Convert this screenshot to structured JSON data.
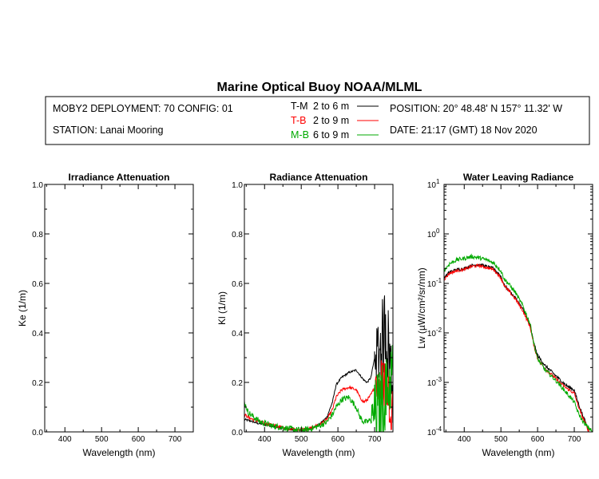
{
  "title": "Marine Optical Buoy NOAA/MLML",
  "info": {
    "deployment": "MOBY2 DEPLOYMENT: 70 CONFIG: 01",
    "station": "STATION: Lanai Mooring",
    "position": "POSITION: 20° 48.48' N   157° 11.32' W",
    "date": "DATE: 21:17 (GMT) 18 Nov 2020",
    "legend": [
      {
        "key": "T-M",
        "range": "2 to 6  m",
        "color": "#000000"
      },
      {
        "key": "T-B",
        "range": "2 to 9  m",
        "color": "#ff0000"
      },
      {
        "key": "M-B",
        "range": "6 to 9  m",
        "color": "#00aa00"
      }
    ]
  },
  "chart_data": [
    {
      "type": "line",
      "title": "Irradiance Attenuation",
      "xlabel": "Wavelength (nm)",
      "ylabel": "Ke  (1/m)",
      "xlim": [
        345,
        750
      ],
      "ylim": [
        0,
        1
      ],
      "xticks": [
        "400",
        "500",
        "600",
        "700"
      ],
      "yticks": [
        "0.0",
        "0.2",
        "0.4",
        "0.6",
        "0.8",
        "1.0"
      ],
      "series": []
    },
    {
      "type": "line",
      "title": "Radiance Attenuation",
      "xlabel": "Wavelength (nm)",
      "ylabel": "Kl  (1/m)",
      "xlim": [
        345,
        750
      ],
      "ylim": [
        0,
        1
      ],
      "xticks": [
        "400",
        "500",
        "600",
        "700"
      ],
      "yticks": [
        "0.0",
        "0.2",
        "0.4",
        "0.6",
        "0.8",
        "1.0"
      ],
      "series": [
        {
          "color": "#000000",
          "noise": 0.004,
          "spike_from": 700,
          "spike_amp": 0.18,
          "x": [
            345,
            360,
            380,
            400,
            430,
            460,
            490,
            520,
            550,
            570,
            585,
            595,
            610,
            630,
            650,
            660,
            670,
            680,
            690,
            700,
            710,
            720,
            730,
            740,
            750
          ],
          "y": [
            0.05,
            0.045,
            0.035,
            0.03,
            0.02,
            0.012,
            0.006,
            0.01,
            0.03,
            0.06,
            0.12,
            0.19,
            0.22,
            0.24,
            0.25,
            0.23,
            0.21,
            0.2,
            0.22,
            0.3,
            0.33,
            0.35,
            0.45,
            0.3,
            0.2
          ]
        },
        {
          "color": "#ff0000",
          "noise": 0.006,
          "spike_from": 700,
          "spike_amp": 0.12,
          "x": [
            345,
            360,
            380,
            400,
            430,
            460,
            490,
            520,
            550,
            570,
            585,
            595,
            610,
            630,
            650,
            660,
            670,
            680,
            690,
            700,
            710,
            720,
            730,
            740,
            750
          ],
          "y": [
            0.07,
            0.055,
            0.045,
            0.035,
            0.025,
            0.015,
            0.008,
            0.012,
            0.03,
            0.05,
            0.09,
            0.14,
            0.17,
            0.18,
            0.17,
            0.14,
            0.12,
            0.13,
            0.15,
            0.18,
            0.2,
            0.18,
            0.22,
            0.15,
            0.1
          ]
        },
        {
          "color": "#00aa00",
          "noise": 0.012,
          "spike_from": 690,
          "spike_amp": 0.15,
          "x": [
            345,
            355,
            370,
            390,
            420,
            460,
            490,
            520,
            550,
            570,
            585,
            595,
            610,
            630,
            650,
            660,
            670,
            680,
            690,
            700,
            710,
            720,
            730,
            740,
            750
          ],
          "y": [
            0.12,
            0.08,
            0.06,
            0.04,
            0.025,
            0.015,
            0.008,
            0.01,
            0.025,
            0.04,
            0.07,
            0.1,
            0.13,
            0.14,
            0.1,
            0.06,
            0.04,
            0.04,
            0.05,
            0.08,
            0.1,
            0.12,
            0.15,
            0.2,
            0.25
          ]
        }
      ]
    },
    {
      "type": "line",
      "title": "Water Leaving Radiance",
      "xlabel": "Wavelength (nm)",
      "ylabel": "Lw  (µW/cm²/sr/nm)",
      "xlim": [
        345,
        750
      ],
      "ylim": [
        0.0001,
        10
      ],
      "yscale": "log",
      "xticks": [
        "400",
        "500",
        "600",
        "700"
      ],
      "yticks": [
        {
          "base": "10",
          "exp": "1"
        },
        {
          "base": "10",
          "exp": "0"
        },
        {
          "base": "10",
          "exp": "-1"
        },
        {
          "base": "10",
          "exp": "-2"
        },
        {
          "base": "10",
          "exp": "-3"
        },
        {
          "base": "10",
          "exp": "-4"
        }
      ],
      "series": [
        {
          "color": "#000000",
          "noise": 0.06,
          "x": [
            345,
            360,
            380,
            400,
            420,
            440,
            460,
            480,
            500,
            510,
            520,
            540,
            560,
            580,
            590,
            600,
            620,
            640,
            660,
            680,
            700,
            710,
            720,
            730,
            740
          ],
          "y": [
            0.13,
            0.17,
            0.19,
            0.2,
            0.23,
            0.24,
            0.22,
            0.2,
            0.14,
            0.09,
            0.075,
            0.05,
            0.03,
            0.014,
            0.006,
            0.0035,
            0.0022,
            0.0016,
            0.00115,
            0.00085,
            0.0007,
            0.0004,
            0.00025,
            0.00016,
            0.0001
          ]
        },
        {
          "color": "#ff0000",
          "noise": 0.06,
          "x": [
            345,
            360,
            380,
            400,
            420,
            440,
            460,
            480,
            500,
            510,
            520,
            540,
            560,
            580,
            590,
            600,
            620,
            640,
            660,
            680,
            700,
            710,
            720,
            730,
            740
          ],
          "y": [
            0.12,
            0.16,
            0.18,
            0.19,
            0.22,
            0.23,
            0.21,
            0.19,
            0.13,
            0.088,
            0.072,
            0.048,
            0.028,
            0.013,
            0.0055,
            0.003,
            0.0019,
            0.0014,
            0.001,
            0.00075,
            0.0006,
            0.00035,
            0.00022,
            0.00015,
            0.0001
          ]
        },
        {
          "color": "#00aa00",
          "noise": 0.08,
          "x": [
            345,
            360,
            380,
            400,
            420,
            440,
            460,
            480,
            500,
            510,
            520,
            540,
            560,
            580,
            590,
            600,
            620,
            640,
            660,
            680,
            700,
            710,
            720,
            730,
            740,
            750
          ],
          "y": [
            0.18,
            0.25,
            0.3,
            0.32,
            0.35,
            0.33,
            0.3,
            0.26,
            0.18,
            0.12,
            0.1,
            0.065,
            0.035,
            0.015,
            0.006,
            0.003,
            0.0018,
            0.0013,
            0.0009,
            0.0006,
            0.0004,
            0.00025,
            0.00018,
            0.00014,
            0.00012,
            0.0001
          ]
        }
      ]
    }
  ]
}
